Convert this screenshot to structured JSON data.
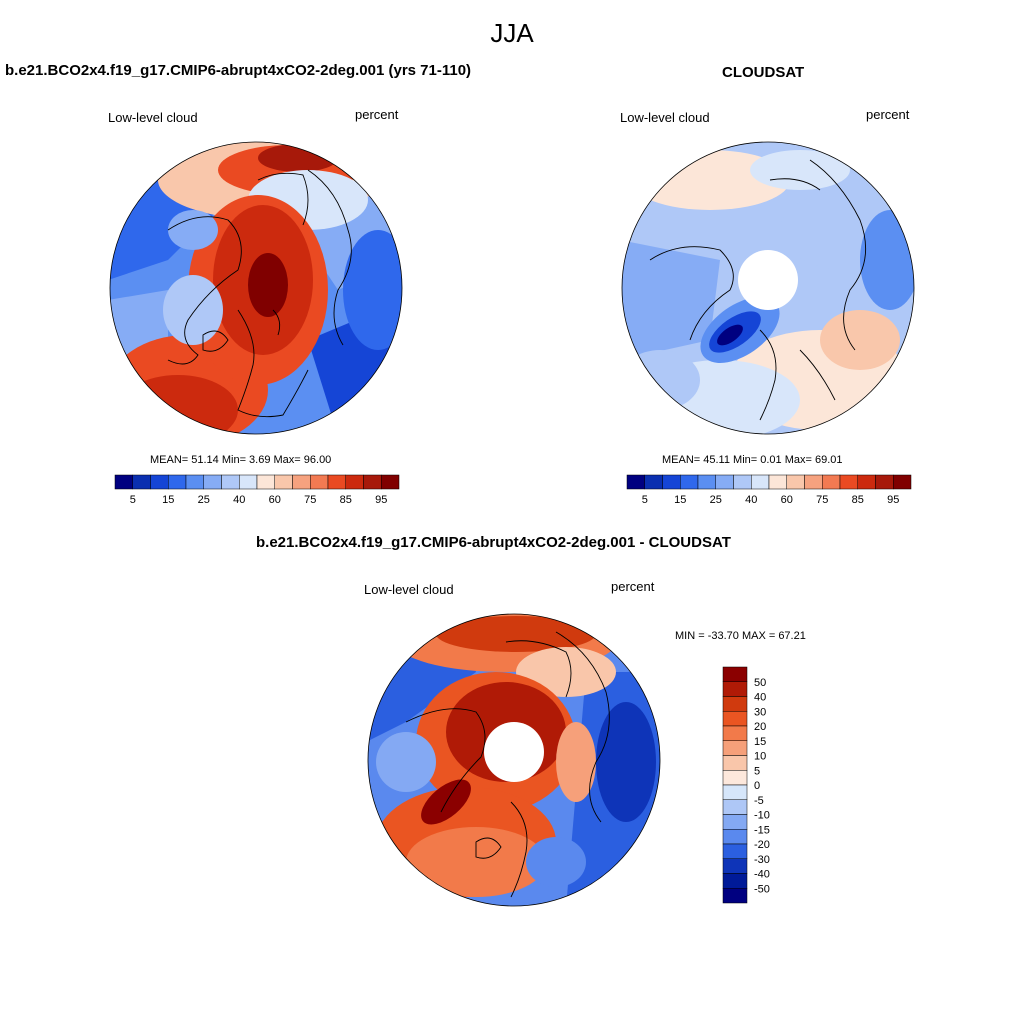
{
  "figure": {
    "season_title": "JJA",
    "variable_label": "Low-level cloud",
    "units_label": "percent"
  },
  "panels": [
    {
      "id": "model",
      "title": "b.e21.BCO2x4.f19_g17.CMIP6-abrupt4xCO2-2deg.001 (yrs 71-110)",
      "stats_text": "MEAN=  51.14  Min=   3.69  Max=  96.00",
      "mean": 51.14,
      "min": 3.69,
      "max": 96.0,
      "center_hole": false
    },
    {
      "id": "obs",
      "title": "CLOUDSAT",
      "stats_text": "MEAN=  45.11  Min=   0.01  Max=  69.01",
      "mean": 45.11,
      "min": 0.01,
      "max": 69.01,
      "center_hole": true
    },
    {
      "id": "diff",
      "title": "b.e21.BCO2x4.f19_g17.CMIP6-abrupt4xCO2-2deg.001 - CLOUDSAT",
      "stats_text": "MIN = -33.70 MAX =  67.21",
      "min": -33.7,
      "max": 67.21,
      "center_hole": true
    }
  ],
  "abs_colorbar": {
    "tick_labels": [
      "5",
      "15",
      "25",
      "40",
      "60",
      "75",
      "85",
      "95"
    ],
    "colors": [
      "#000080",
      "#0a2fb0",
      "#1545d6",
      "#2f68ec",
      "#5b8ff2",
      "#86acf5",
      "#afc8f7",
      "#d8e6fa",
      "#fce6d8",
      "#f9c7ab",
      "#f6a27f",
      "#f27a52",
      "#ea4a22",
      "#cc2a0e",
      "#a7190a",
      "#800000"
    ]
  },
  "diff_colorbar": {
    "labels": [
      "50",
      "40",
      "30",
      "20",
      "15",
      "10",
      "5",
      "0",
      "-5",
      "-10",
      "-15",
      "-20",
      "-30",
      "-40",
      "-50"
    ],
    "colors": [
      "#8b0000",
      "#b01a06",
      "#d03a0e",
      "#ea5522",
      "#f27a4a",
      "#f6a07a",
      "#f9c6aa",
      "#fde8dc",
      "#d6e6fa",
      "#aec7f6",
      "#84a9f3",
      "#5a89ee",
      "#2b5fe0",
      "#0e34b8",
      "#001a98",
      "#000080"
    ]
  },
  "map_colors": {
    "land_outline": "#000000",
    "hole_fill": "#ffffff"
  }
}
